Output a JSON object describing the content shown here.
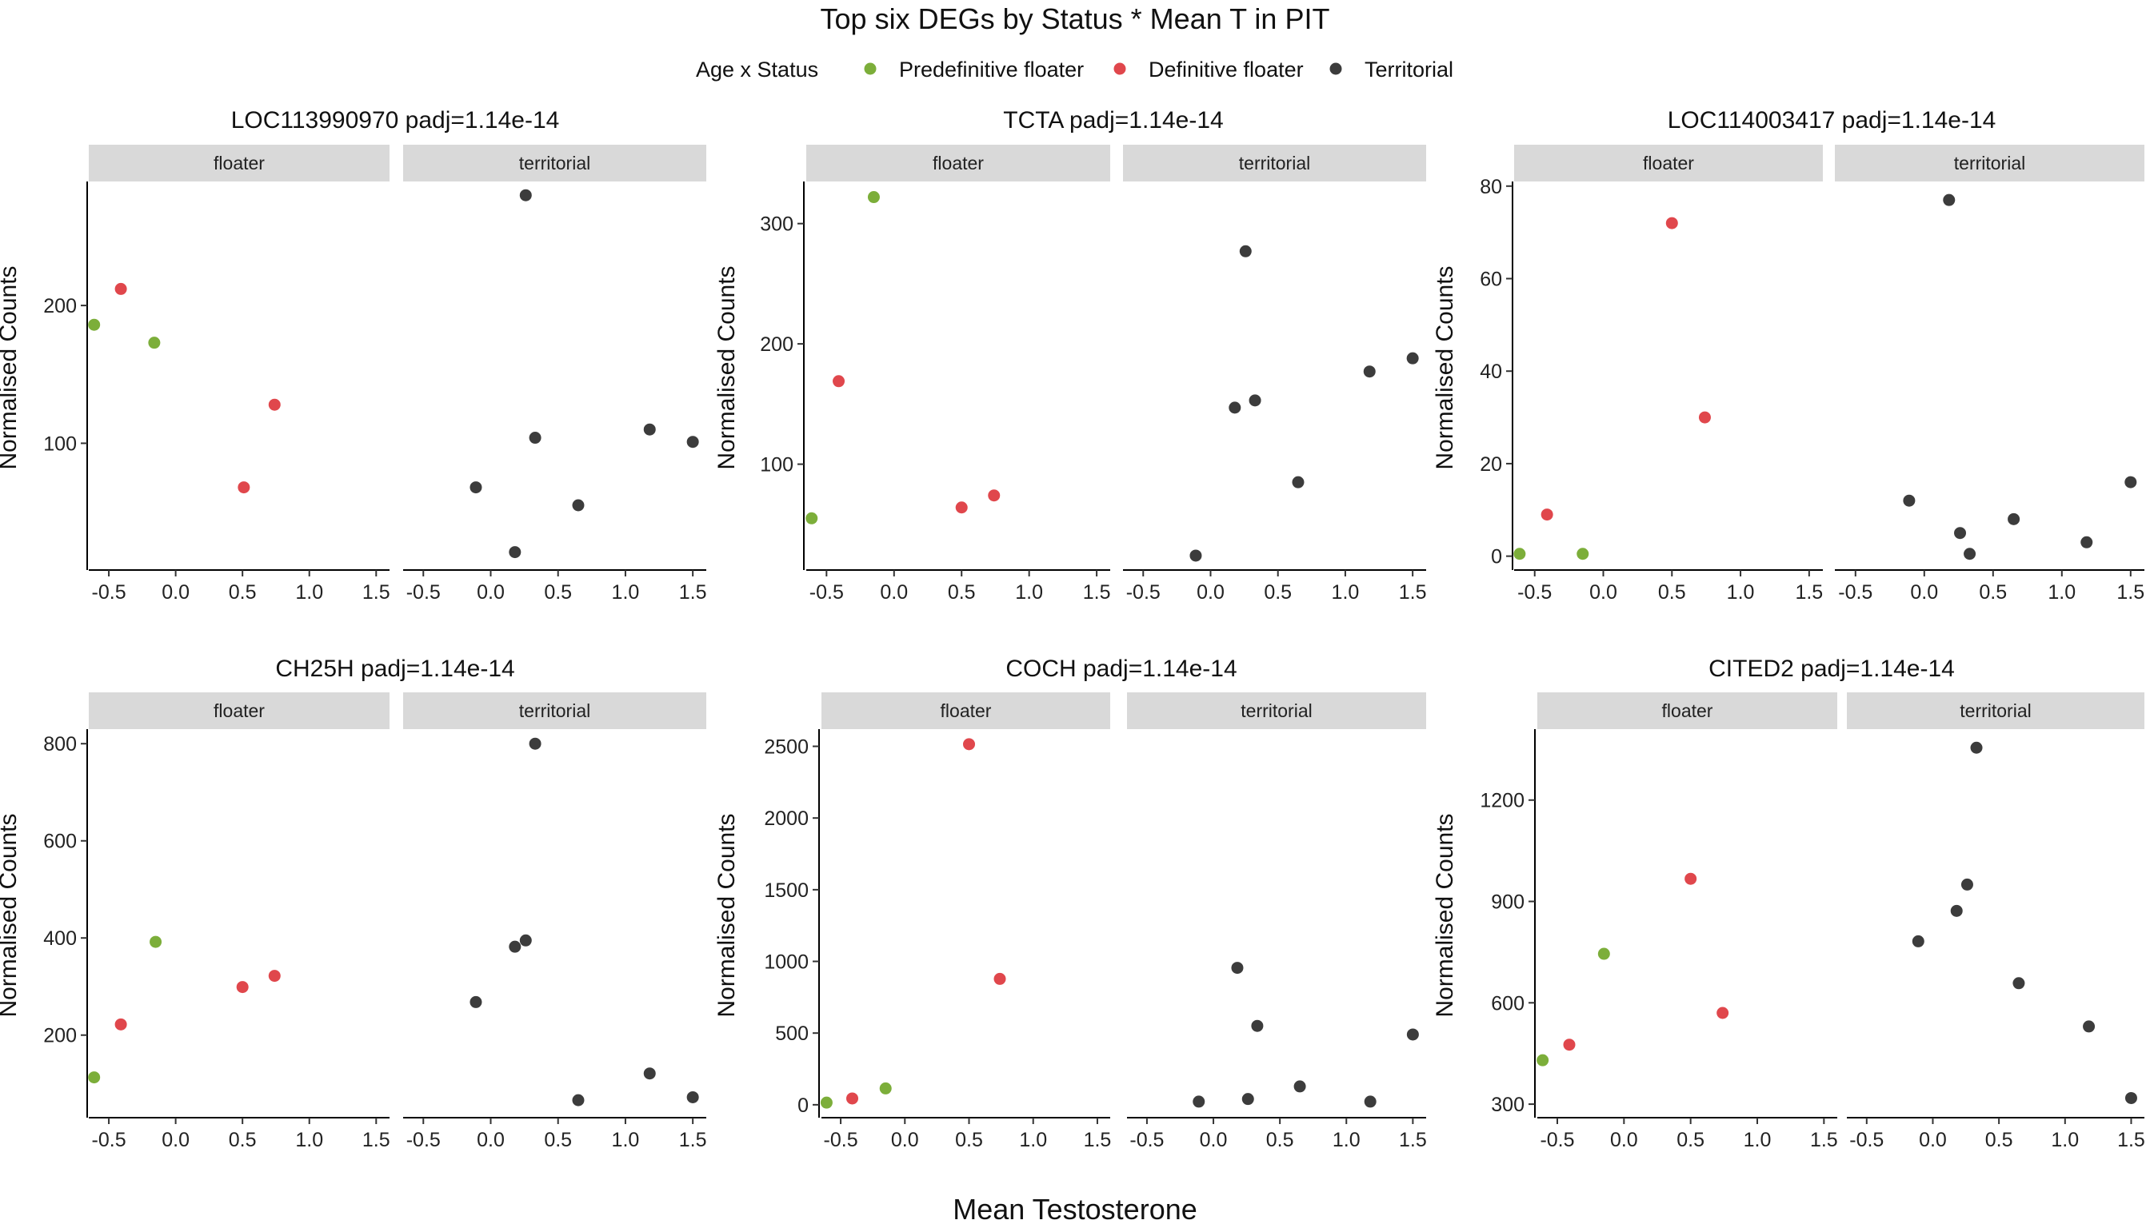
{
  "chart_data": {
    "type": "scatter",
    "title": "Top six DEGs by Status * Mean T in PIT",
    "xlabel": "Mean Testosterone",
    "ylabel": "Normalised Counts",
    "legend": {
      "title": "Age x Status",
      "placement": "top",
      "entries": [
        {
          "key": "pre",
          "label": "Predefinitive floater",
          "color": "#7cae3a"
        },
        {
          "key": "def",
          "label": "Definitive floater",
          "color": "#e0474c"
        },
        {
          "key": "ter",
          "label": "Territorial",
          "color": "#3c3c3c"
        }
      ]
    },
    "facets": [
      "floater",
      "territorial"
    ],
    "x_ticks": [
      -0.5,
      0.0,
      0.5,
      1.0,
      1.5
    ],
    "x_tick_labels": [
      "-0.5",
      "0.0",
      "0.5",
      "1.0",
      "1.5"
    ],
    "xlim": [
      -0.65,
      1.6
    ],
    "grid": false,
    "panels": [
      {
        "title": "LOC113990970 padj=1.14e-14",
        "ylim": [
          8,
          290
        ],
        "y_ticks": [
          100,
          200
        ],
        "y_tick_labels": [
          "100",
          "200"
        ],
        "floater": [
          {
            "x": -0.61,
            "y": 186,
            "g": "pre"
          },
          {
            "x": -0.16,
            "y": 173,
            "g": "pre"
          },
          {
            "x": -0.41,
            "y": 212,
            "g": "def"
          },
          {
            "x": 0.51,
            "y": 68,
            "g": "def"
          },
          {
            "x": 0.74,
            "y": 128,
            "g": "def"
          }
        ],
        "territorial": [
          {
            "x": -0.11,
            "y": 68,
            "g": "ter"
          },
          {
            "x": 0.18,
            "y": 21,
            "g": "ter"
          },
          {
            "x": 0.26,
            "y": 280,
            "g": "ter"
          },
          {
            "x": 0.33,
            "y": 104,
            "g": "ter"
          },
          {
            "x": 0.65,
            "y": 55,
            "g": "ter"
          },
          {
            "x": 1.18,
            "y": 110,
            "g": "ter"
          },
          {
            "x": 1.5,
            "y": 101,
            "g": "ter"
          }
        ]
      },
      {
        "title": "TCTA padj=1.14e-14",
        "ylim": [
          12,
          335
        ],
        "y_ticks": [
          100,
          200,
          300
        ],
        "y_tick_labels": [
          "100",
          "200",
          "300"
        ],
        "floater": [
          {
            "x": -0.61,
            "y": 55,
            "g": "pre"
          },
          {
            "x": -0.15,
            "y": 322,
            "g": "pre"
          },
          {
            "x": -0.41,
            "y": 169,
            "g": "def"
          },
          {
            "x": 0.5,
            "y": 64,
            "g": "def"
          },
          {
            "x": 0.74,
            "y": 74,
            "g": "def"
          }
        ],
        "territorial": [
          {
            "x": -0.11,
            "y": 24,
            "g": "ter"
          },
          {
            "x": 0.18,
            "y": 147,
            "g": "ter"
          },
          {
            "x": 0.26,
            "y": 277,
            "g": "ter"
          },
          {
            "x": 0.33,
            "y": 153,
            "g": "ter"
          },
          {
            "x": 0.65,
            "y": 85,
            "g": "ter"
          },
          {
            "x": 1.18,
            "y": 177,
            "g": "ter"
          },
          {
            "x": 1.5,
            "y": 188,
            "g": "ter"
          }
        ]
      },
      {
        "title": "LOC114003417 padj=1.14e-14",
        "ylim": [
          -3,
          81
        ],
        "y_ticks": [
          0,
          20,
          40,
          60,
          80
        ],
        "y_tick_labels": [
          "0",
          "20",
          "40",
          "60",
          "80"
        ],
        "floater": [
          {
            "x": -0.61,
            "y": 0.5,
            "g": "pre"
          },
          {
            "x": -0.15,
            "y": 0.5,
            "g": "pre"
          },
          {
            "x": -0.41,
            "y": 9,
            "g": "def"
          },
          {
            "x": 0.5,
            "y": 72,
            "g": "def"
          },
          {
            "x": 0.74,
            "y": 30,
            "g": "def"
          }
        ],
        "territorial": [
          {
            "x": -0.11,
            "y": 12,
            "g": "ter"
          },
          {
            "x": 0.18,
            "y": 77,
            "g": "ter"
          },
          {
            "x": 0.26,
            "y": 5,
            "g": "ter"
          },
          {
            "x": 0.33,
            "y": 0.5,
            "g": "ter"
          },
          {
            "x": 0.65,
            "y": 8,
            "g": "ter"
          },
          {
            "x": 1.18,
            "y": 3,
            "g": "ter"
          },
          {
            "x": 1.5,
            "y": 16,
            "g": "ter"
          }
        ]
      },
      {
        "title": "CH25H padj=1.14e-14",
        "ylim": [
          30,
          830
        ],
        "y_ticks": [
          200,
          400,
          600,
          800
        ],
        "y_tick_labels": [
          "200",
          "400",
          "600",
          "800"
        ],
        "floater": [
          {
            "x": -0.61,
            "y": 113,
            "g": "pre"
          },
          {
            "x": -0.15,
            "y": 392,
            "g": "pre"
          },
          {
            "x": -0.41,
            "y": 222,
            "g": "def"
          },
          {
            "x": 0.5,
            "y": 299,
            "g": "def"
          },
          {
            "x": 0.74,
            "y": 322,
            "g": "def"
          }
        ],
        "territorial": [
          {
            "x": -0.11,
            "y": 268,
            "g": "ter"
          },
          {
            "x": 0.18,
            "y": 382,
            "g": "ter"
          },
          {
            "x": 0.26,
            "y": 395,
            "g": "ter"
          },
          {
            "x": 0.33,
            "y": 800,
            "g": "ter"
          },
          {
            "x": 0.65,
            "y": 66,
            "g": "ter"
          },
          {
            "x": 1.18,
            "y": 121,
            "g": "ter"
          },
          {
            "x": 1.5,
            "y": 72,
            "g": "ter"
          }
        ]
      },
      {
        "title": "COCH padj=1.14e-14",
        "ylim": [
          -90,
          2620
        ],
        "y_ticks": [
          0,
          500,
          1000,
          1500,
          2000,
          2500
        ],
        "y_tick_labels": [
          "0",
          "500",
          "1000",
          "1500",
          "2000",
          "2500"
        ],
        "floater": [
          {
            "x": -0.61,
            "y": 15,
            "g": "pre"
          },
          {
            "x": -0.15,
            "y": 114,
            "g": "pre"
          },
          {
            "x": -0.41,
            "y": 44,
            "g": "def"
          },
          {
            "x": 0.5,
            "y": 2515,
            "g": "def"
          },
          {
            "x": 0.74,
            "y": 878,
            "g": "def"
          }
        ],
        "territorial": [
          {
            "x": -0.11,
            "y": 22,
            "g": "ter"
          },
          {
            "x": 0.18,
            "y": 955,
            "g": "ter"
          },
          {
            "x": 0.26,
            "y": 40,
            "g": "ter"
          },
          {
            "x": 0.33,
            "y": 550,
            "g": "ter"
          },
          {
            "x": 0.65,
            "y": 128,
            "g": "ter"
          },
          {
            "x": 1.18,
            "y": 22,
            "g": "ter"
          },
          {
            "x": 1.5,
            "y": 490,
            "g": "ter"
          }
        ]
      },
      {
        "title": "CITED2 padj=1.14e-14",
        "ylim": [
          260,
          1410
        ],
        "y_ticks": [
          300,
          600,
          900,
          1200
        ],
        "y_tick_labels": [
          "300",
          "600",
          "900",
          "1200"
        ],
        "floater": [
          {
            "x": -0.61,
            "y": 430,
            "g": "pre"
          },
          {
            "x": -0.15,
            "y": 745,
            "g": "pre"
          },
          {
            "x": -0.41,
            "y": 476,
            "g": "def"
          },
          {
            "x": 0.5,
            "y": 967,
            "g": "def"
          },
          {
            "x": 0.74,
            "y": 570,
            "g": "def"
          }
        ],
        "territorial": [
          {
            "x": -0.11,
            "y": 782,
            "g": "ter"
          },
          {
            "x": 0.18,
            "y": 872,
            "g": "ter"
          },
          {
            "x": 0.26,
            "y": 950,
            "g": "ter"
          },
          {
            "x": 0.33,
            "y": 1355,
            "g": "ter"
          },
          {
            "x": 0.65,
            "y": 658,
            "g": "ter"
          },
          {
            "x": 1.18,
            "y": 530,
            "g": "ter"
          },
          {
            "x": 1.5,
            "y": 318,
            "g": "ter"
          }
        ]
      }
    ]
  }
}
